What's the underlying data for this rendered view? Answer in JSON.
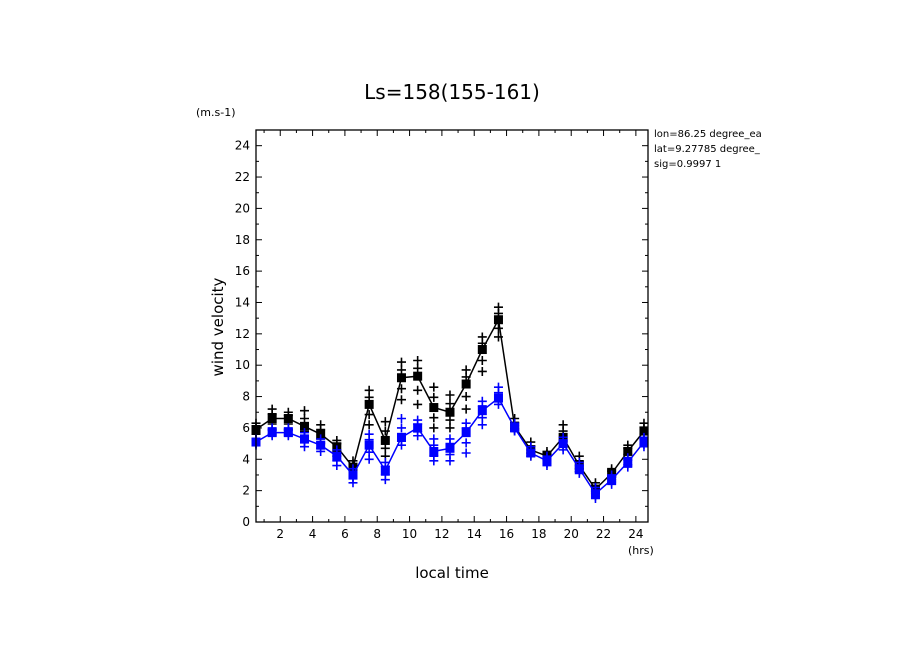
{
  "chart_data": {
    "type": "line",
    "title": "Ls=158(155-161)",
    "xlabel": "local time",
    "ylabel": "wind velocity",
    "x_unit": "(hrs)",
    "y_unit": "(m.s-1)",
    "xlim": [
      0.5,
      24.75
    ],
    "ylim": [
      0,
      25
    ],
    "x_ticks": [
      2,
      4,
      6,
      8,
      10,
      12,
      14,
      16,
      18,
      20,
      22,
      24
    ],
    "y_ticks": [
      0,
      2,
      4,
      6,
      8,
      10,
      12,
      14,
      16,
      18,
      20,
      22,
      24
    ],
    "annotations": [
      "lon=86.25 degree_ea",
      "lat=9.27785 degree_",
      "sig=0.9997 1"
    ],
    "x": [
      0.5,
      1.5,
      2.5,
      3.5,
      4.5,
      5.5,
      6.5,
      7.5,
      8.5,
      9.5,
      10.5,
      11.5,
      12.5,
      13.5,
      14.5,
      15.5,
      16.5,
      17.5,
      18.5,
      19.5,
      20.5,
      21.5,
      22.5,
      23.5,
      24.5
    ],
    "series": [
      {
        "color": "#000000",
        "values": [
          5.9,
          6.6,
          6.6,
          6.1,
          5.6,
          4.8,
          3.5,
          7.5,
          5.2,
          9.2,
          9.3,
          7.3,
          7.0,
          8.8,
          11.0,
          12.9,
          6.1,
          4.6,
          4.2,
          5.4,
          3.6,
          2.1,
          3.1,
          4.5,
          5.8
        ],
        "spread_low": [
          5.6,
          5.9,
          5.9,
          5.4,
          5.0,
          4.2,
          2.9,
          6.2,
          4.2,
          7.8,
          7.5,
          6.0,
          6.0,
          7.2,
          9.6,
          11.8,
          5.8,
          4.2,
          3.9,
          4.8,
          3.2,
          1.8,
          2.7,
          4.1,
          5.4
        ],
        "spread_high": [
          6.3,
          7.2,
          7.0,
          7.1,
          6.2,
          5.2,
          3.9,
          8.4,
          6.4,
          10.2,
          10.3,
          8.6,
          8.1,
          9.7,
          11.8,
          13.7,
          6.6,
          5.1,
          4.5,
          6.2,
          4.2,
          2.5,
          3.4,
          4.9,
          6.3
        ]
      },
      {
        "color": "#0000ff",
        "values": [
          5.1,
          5.7,
          5.7,
          5.3,
          4.9,
          4.2,
          3.0,
          4.9,
          3.3,
          5.4,
          6.0,
          4.5,
          4.7,
          5.7,
          7.1,
          7.9,
          6.0,
          4.4,
          3.9,
          5.0,
          3.4,
          1.8,
          2.7,
          3.8,
          5.1
        ],
        "spread_low": [
          4.9,
          5.5,
          5.5,
          4.8,
          4.5,
          3.6,
          2.5,
          4.0,
          2.7,
          4.9,
          5.5,
          3.9,
          3.9,
          4.4,
          6.2,
          7.5,
          5.8,
          4.2,
          3.6,
          4.6,
          3.1,
          1.5,
          2.4,
          3.5,
          4.8
        ],
        "spread_high": [
          5.3,
          6.0,
          6.0,
          5.7,
          5.3,
          4.6,
          3.4,
          5.6,
          3.8,
          6.6,
          6.5,
          5.3,
          5.3,
          6.3,
          7.7,
          8.6,
          6.3,
          4.8,
          4.2,
          5.4,
          3.8,
          2.2,
          3.0,
          4.1,
          5.4
        ]
      }
    ],
    "grid": false,
    "legend": "none"
  }
}
